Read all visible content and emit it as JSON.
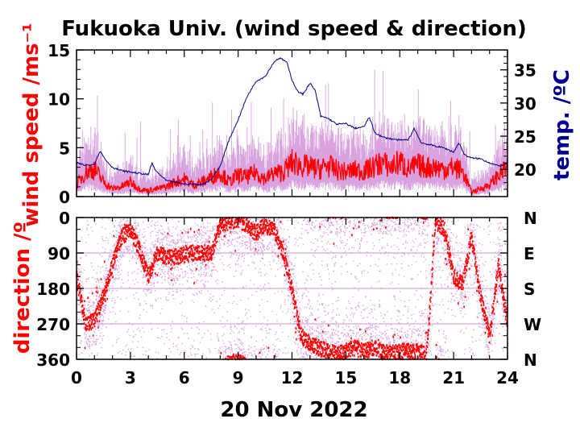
{
  "chart_data": [
    {
      "type": "line",
      "title": "Fukuoka Univ. (wind speed & direction)",
      "xlabel": "",
      "ylabel": "wind speed /ms⁻¹",
      "y2label": "temp. /ºC",
      "xlim": [
        0,
        24
      ],
      "ylim": [
        0,
        15
      ],
      "y2lim": [
        15.9,
        38
      ],
      "xticks": [
        0,
        3,
        6,
        9,
        12,
        15,
        18,
        21,
        24
      ],
      "yticks": [
        0,
        5,
        10,
        15
      ],
      "y2ticks": [
        20,
        25,
        30,
        35
      ],
      "colors": {
        "speed": "#ff0000",
        "gust": "#d9a3e0",
        "temp": "#00008b"
      },
      "series": [
        {
          "role": "speed",
          "x": [
            0,
            0.5,
            1,
            1.5,
            2,
            2.5,
            3,
            3.5,
            4,
            4.5,
            5,
            5.5,
            6,
            6.5,
            7,
            7.5,
            8,
            8.5,
            9,
            9.5,
            10,
            10.5,
            11,
            11.5,
            12,
            12.5,
            13,
            13.5,
            14,
            14.5,
            15,
            15.5,
            16,
            16.5,
            17,
            17.5,
            18,
            18.5,
            19,
            19.5,
            20,
            20.5,
            21,
            21.5,
            22,
            22.5,
            23,
            23.5,
            24
          ],
          "y": [
            1.2,
            2.5,
            2.8,
            1.5,
            0.8,
            1.0,
            1.5,
            0.8,
            0.6,
            0.8,
            1.0,
            1.5,
            1.8,
            1.2,
            1.5,
            2.0,
            2.5,
            1.5,
            2.2,
            2.0,
            2.5,
            1.8,
            2.4,
            2.5,
            3.5,
            3.2,
            3.0,
            2.8,
            3.2,
            2.7,
            2.5,
            2.7,
            2.6,
            3.0,
            3.5,
            3.0,
            3.6,
            2.8,
            3.2,
            3.0,
            3.0,
            2.8,
            3.0,
            2.6,
            0.5,
            0.8,
            1.2,
            2.2,
            3.0
          ]
        },
        {
          "role": "temp",
          "x": [
            0,
            0.5,
            1,
            1.3,
            1.6,
            2,
            2.5,
            3,
            3.5,
            4,
            4.2,
            4.4,
            5,
            6,
            7,
            7.5,
            8,
            8.5,
            9,
            9.5,
            10,
            10.5,
            11,
            11.3,
            11.7,
            12,
            12.3,
            12.6,
            13,
            13.3,
            13.6,
            14,
            14.5,
            15,
            15.5,
            16,
            16.3,
            16.6,
            17,
            17.5,
            18,
            18.5,
            18.8,
            19.2,
            20,
            20.5,
            21,
            21.3,
            21.6,
            22,
            22.5,
            23,
            23.5,
            24
          ],
          "y": [
            21,
            20.6,
            20.8,
            22.8,
            21.5,
            20.3,
            19.8,
            19.6,
            19.4,
            19.2,
            21.0,
            19.8,
            18.3,
            17.8,
            17.7,
            18.5,
            20.5,
            24.5,
            27.5,
            31.0,
            33.3,
            34.0,
            36.2,
            36.8,
            36.2,
            33.5,
            31.8,
            31.3,
            33.0,
            31.8,
            28.0,
            27.7,
            26.8,
            26.9,
            26.2,
            26.4,
            27.9,
            25.6,
            24.9,
            24.6,
            24.4,
            24.5,
            26.2,
            24.0,
            23.5,
            23.2,
            22.6,
            24.0,
            22.2,
            21.7,
            21.6,
            21.0,
            20.5,
            20.8
          ]
        }
      ]
    },
    {
      "type": "scatter",
      "title": "",
      "xlabel": "20 Nov 2022",
      "ylabel": "direction /º",
      "xlim": [
        0,
        24
      ],
      "ylim": [
        360,
        0
      ],
      "xticks": [
        0,
        3,
        6,
        9,
        12,
        15,
        18,
        21,
        24
      ],
      "yticks": [
        0,
        90,
        180,
        270,
        360
      ],
      "y2tick_labels": [
        "N",
        "E",
        "S",
        "W",
        "N"
      ],
      "colors": {
        "direction": "#ff0000",
        "scatter": "#d9a3e0",
        "gridline": "#e8c8ea"
      },
      "series": [
        {
          "role": "direction",
          "x": [
            0,
            0.5,
            1,
            1.5,
            2,
            2.5,
            3,
            3.5,
            4,
            4.5,
            5,
            5.5,
            6,
            6.5,
            7,
            7.5,
            8,
            8.5,
            9,
            9.5,
            10,
            10.5,
            11,
            11.5,
            12,
            12.5,
            13,
            13.5,
            14,
            14.5,
            15,
            15.5,
            16,
            16.5,
            17,
            17.5,
            18,
            18.5,
            19,
            19.5,
            20,
            20.5,
            21,
            21.5,
            22,
            22.5,
            23,
            23.5,
            24
          ],
          "y": [
            150,
            270,
            262,
            200,
            120,
            50,
            30,
            80,
            150,
            90,
            100,
            100,
            95,
            90,
            90,
            90,
            20,
            10,
            5,
            20,
            40,
            20,
            30,
            90,
            180,
            300,
            320,
            330,
            340,
            345,
            340,
            330,
            340,
            330,
            340,
            345,
            340,
            340,
            340,
            345,
            10,
            30,
            150,
            170,
            50,
            200,
            300,
            120,
            270
          ]
        }
      ]
    }
  ]
}
